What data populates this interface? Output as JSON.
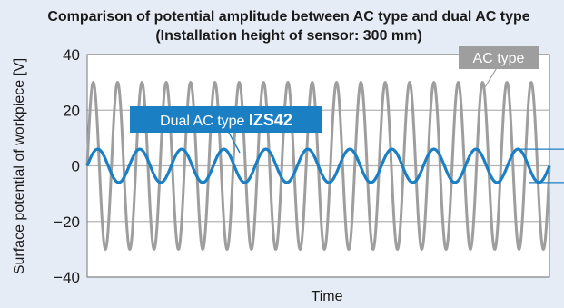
{
  "chart_data": {
    "type": "line",
    "title": "Comparison of potential amplitude between AC type and dual AC type",
    "subtitle": "(Installation height of sensor: 300 mm)",
    "xlabel": "Time",
    "ylabel": "Surface potential of workpiece [V]",
    "ylim": [
      -40,
      40
    ],
    "yticks": [
      40,
      20,
      0,
      -20,
      -40
    ],
    "yticklabels": [
      "40",
      "20",
      "0",
      "−20",
      "−40"
    ],
    "grid": true,
    "series": [
      {
        "name": "AC type",
        "shape": "sine",
        "amplitude": 30,
        "cycles": 19,
        "color": "#9e9e9e"
      },
      {
        "name": "Dual AC type",
        "name_suffix": "IZS42",
        "shape": "sine",
        "amplitude": 6,
        "cycles": 11,
        "color": "#1b7fc4"
      }
    ],
    "colors": {
      "ac": "#9e9e9e",
      "dual": "#1b7fc4",
      "grid": "#b5b5b5",
      "background": "#e6ecf6"
    }
  }
}
